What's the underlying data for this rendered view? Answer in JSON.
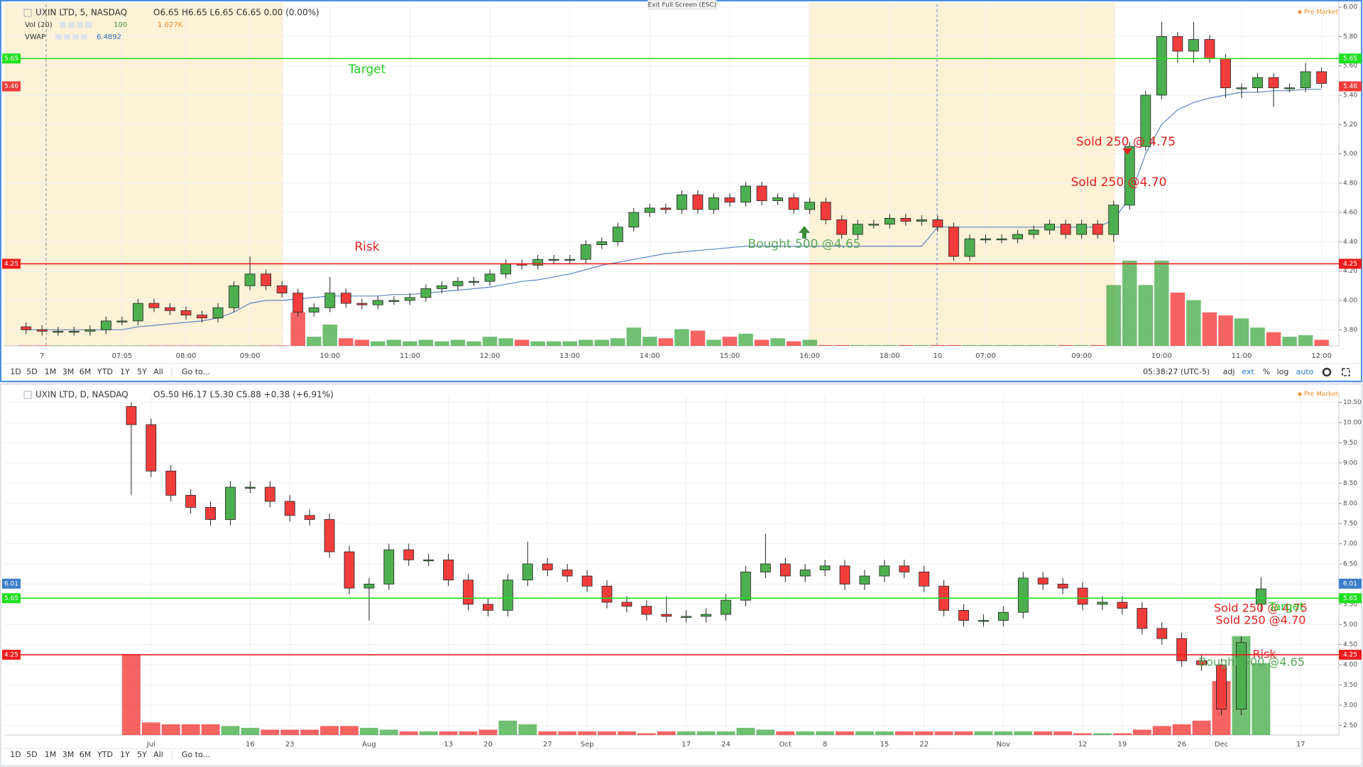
{
  "ui": {
    "exit_fullscreen": "Exit Full Screen (ESC)",
    "ranges": [
      "1D",
      "5D",
      "1M",
      "3M",
      "6M",
      "YTD",
      "1Y",
      "5Y",
      "All"
    ],
    "goto": "Go to...",
    "clock": "05:38:27 (UTC-5)",
    "options": [
      "adj",
      "ext",
      "%",
      "log",
      "auto"
    ]
  },
  "chart_data": [
    {
      "type": "candlestick",
      "title": "UXIN LTD, 5, NASDAQ",
      "ohlc_text": "O6.65 H6.65 L6.65 C6.65 0.00 (0.00%)",
      "session": "Pre Market",
      "indicators": [
        {
          "name": "Vol (20)",
          "values_text": [
            "100",
            "1.027K"
          ],
          "colors": [
            "#3a9a3a",
            "#f28c28"
          ]
        },
        {
          "name": "VWAP",
          "values_text": [
            "6.4892"
          ],
          "colors": [
            "#2f6fb8"
          ]
        }
      ],
      "up_color": "#4caf50",
      "down_color": "#f23c3c",
      "categories": [
        null,
        "7",
        null,
        null,
        null,
        null,
        "07:05",
        null,
        null,
        null,
        "08:00",
        null,
        null,
        null,
        "09:00",
        null,
        null,
        null,
        null,
        "10:00",
        null,
        null,
        null,
        null,
        "11:00",
        null,
        null,
        null,
        null,
        "12:00",
        null,
        null,
        null,
        null,
        "13:00",
        null,
        null,
        null,
        null,
        "14:00",
        null,
        null,
        null,
        null,
        "15:00",
        null,
        null,
        null,
        null,
        "16:00",
        null,
        null,
        null,
        null,
        "18:00",
        null,
        null,
        "10",
        null,
        null,
        "07:00",
        null,
        null,
        null,
        null,
        null,
        "09:00",
        null,
        null,
        null,
        null,
        "10:00",
        null,
        null,
        null,
        null,
        "11:00",
        null,
        null,
        null,
        null,
        "12:00"
      ],
      "open": [
        3.82,
        3.8,
        3.79,
        3.79,
        3.79,
        3.8,
        3.86,
        3.86,
        3.98,
        3.95,
        3.93,
        3.9,
        3.88,
        3.95,
        4.1,
        4.18,
        4.1,
        4.05,
        3.92,
        3.95,
        4.05,
        3.98,
        3.97,
        4.0,
        4.0,
        4.02,
        4.08,
        4.1,
        4.13,
        4.13,
        4.18,
        4.25,
        4.24,
        4.28,
        4.28,
        4.28,
        4.38,
        4.4,
        4.5,
        4.6,
        4.63,
        4.62,
        4.72,
        4.62,
        4.7,
        4.67,
        4.78,
        4.68,
        4.7,
        4.62,
        4.67,
        4.55,
        4.45,
        4.52,
        4.52,
        4.56,
        4.54,
        4.55,
        4.5,
        4.3,
        4.42,
        4.42,
        4.42,
        4.45,
        4.48,
        4.52,
        4.45,
        4.52,
        4.45,
        4.65,
        5.05,
        5.4,
        5.8,
        5.7,
        5.78,
        5.65,
        5.45,
        5.45,
        5.52,
        5.45,
        5.45,
        5.56
      ],
      "high": [
        3.85,
        3.83,
        3.82,
        3.82,
        3.83,
        3.89,
        3.89,
        4.01,
        4.01,
        3.98,
        3.96,
        3.93,
        3.98,
        4.13,
        4.3,
        4.21,
        4.13,
        4.08,
        3.98,
        4.16,
        4.08,
        4.01,
        4.03,
        4.03,
        4.05,
        4.11,
        4.13,
        4.16,
        4.16,
        4.21,
        4.28,
        4.28,
        4.31,
        4.31,
        4.31,
        4.41,
        4.43,
        4.53,
        4.63,
        4.66,
        4.66,
        4.75,
        4.75,
        4.73,
        4.73,
        4.81,
        4.81,
        4.73,
        4.73,
        4.7,
        4.7,
        4.58,
        4.55,
        4.55,
        4.59,
        4.59,
        4.58,
        4.58,
        4.53,
        4.45,
        4.45,
        4.45,
        4.48,
        4.51,
        4.55,
        4.55,
        4.55,
        4.55,
        4.68,
        5.08,
        5.43,
        5.9,
        5.83,
        5.9,
        5.81,
        5.68,
        5.48,
        5.55,
        5.55,
        5.48,
        5.62,
        5.59
      ],
      "low": [
        3.77,
        3.76,
        3.76,
        3.76,
        3.76,
        3.77,
        3.83,
        3.83,
        3.92,
        3.9,
        3.87,
        3.85,
        3.85,
        3.92,
        4.07,
        4.07,
        4.02,
        3.89,
        3.89,
        3.92,
        3.95,
        3.94,
        3.94,
        3.97,
        3.97,
        3.99,
        4.05,
        4.07,
        4.1,
        4.1,
        4.15,
        4.21,
        4.21,
        4.25,
        4.25,
        4.25,
        4.35,
        4.37,
        4.47,
        4.57,
        4.59,
        4.59,
        4.59,
        4.59,
        4.64,
        4.64,
        4.65,
        4.65,
        4.59,
        4.59,
        4.52,
        4.42,
        4.42,
        4.49,
        4.49,
        4.51,
        4.51,
        4.47,
        4.27,
        4.27,
        4.39,
        4.39,
        4.39,
        4.42,
        4.45,
        4.42,
        4.42,
        4.42,
        4.4,
        4.62,
        5.02,
        5.37,
        5.62,
        5.62,
        5.62,
        5.38,
        5.38,
        5.42,
        5.32,
        5.42,
        5.42,
        5.45
      ],
      "close": [
        3.8,
        3.79,
        3.79,
        3.79,
        3.8,
        3.86,
        3.86,
        3.98,
        3.95,
        3.93,
        3.9,
        3.88,
        3.95,
        4.1,
        4.18,
        4.1,
        4.05,
        3.92,
        3.95,
        4.05,
        3.98,
        3.97,
        4.0,
        4.0,
        4.02,
        4.08,
        4.1,
        4.13,
        4.13,
        4.18,
        4.25,
        4.24,
        4.28,
        4.28,
        4.28,
        4.38,
        4.4,
        4.5,
        4.6,
        4.63,
        4.62,
        4.72,
        4.62,
        4.7,
        4.67,
        4.78,
        4.68,
        4.7,
        4.62,
        4.67,
        4.55,
        4.45,
        4.52,
        4.52,
        4.56,
        4.54,
        4.55,
        4.5,
        4.3,
        4.42,
        4.42,
        4.42,
        4.45,
        4.48,
        4.52,
        4.45,
        4.52,
        4.45,
        4.65,
        5.05,
        5.4,
        5.8,
        5.7,
        5.78,
        5.65,
        5.45,
        5.45,
        5.52,
        5.45,
        5.45,
        5.56,
        5.48
      ],
      "volume": [
        3,
        3,
        3,
        3,
        3,
        3,
        3,
        3,
        3,
        3,
        3,
        3,
        3,
        3,
        3,
        3,
        3,
        220,
        60,
        140,
        50,
        40,
        30,
        40,
        30,
        40,
        30,
        40,
        30,
        60,
        50,
        40,
        30,
        30,
        30,
        40,
        40,
        50,
        120,
        60,
        50,
        110,
        100,
        40,
        60,
        80,
        40,
        50,
        30,
        40,
        5,
        5,
        5,
        5,
        5,
        5,
        5,
        5,
        5,
        5,
        5,
        5,
        5,
        5,
        5,
        5,
        5,
        5,
        400,
        560,
        400,
        560,
        350,
        300,
        220,
        200,
        180,
        120,
        90,
        60,
        70,
        40
      ],
      "vollim": [
        0,
        560
      ],
      "vwap": {
        "color": "#5b86c5",
        "values": [
          3.8,
          3.8,
          3.8,
          3.8,
          3.8,
          3.8,
          3.8,
          3.82,
          3.83,
          3.84,
          3.85,
          3.86,
          3.88,
          3.92,
          3.98,
          4.0,
          4.0,
          4.01,
          4.02,
          4.03,
          4.03,
          4.03,
          4.03,
          4.04,
          4.04,
          4.05,
          4.06,
          4.07,
          4.08,
          4.09,
          4.11,
          4.13,
          4.14,
          4.16,
          4.18,
          4.21,
          4.24,
          4.26,
          4.28,
          4.3,
          4.32,
          4.33,
          4.34,
          4.35,
          4.36,
          4.37,
          4.37,
          4.37,
          4.37,
          4.37,
          4.37,
          4.37,
          4.37,
          4.37,
          4.37,
          4.37,
          4.37,
          4.5,
          4.5,
          4.5,
          4.5,
          4.5,
          4.5,
          4.5,
          4.5,
          4.5,
          4.5,
          4.5,
          4.55,
          4.7,
          5.0,
          5.2,
          5.3,
          5.35,
          5.38,
          5.4,
          5.42,
          5.42,
          5.43,
          5.43,
          5.44,
          5.44
        ]
      },
      "ylim": [
        3.69,
        6.02
      ],
      "yticks": [
        {
          "value": 3.8,
          "label": "3.80"
        },
        {
          "value": 4.0,
          "label": "4.00"
        },
        {
          "value": 4.2,
          "label": "4.20"
        },
        {
          "value": 4.4,
          "label": "4.40"
        },
        {
          "value": 4.6,
          "label": "4.60"
        },
        {
          "value": 4.8,
          "label": "4.80"
        },
        {
          "value": 5.0,
          "label": "5.00"
        },
        {
          "value": 5.2,
          "label": "5.20"
        },
        {
          "value": 5.4,
          "label": "5.40"
        },
        {
          "value": 5.6,
          "label": "5.60"
        },
        {
          "value": 5.8,
          "label": "5.80"
        },
        {
          "value": 6.0,
          "label": "6.00"
        }
      ],
      "grid": true,
      "levels": [
        {
          "value": 5.65,
          "color": "#1ee01e"
        },
        {
          "value": 4.25,
          "color": "#ee1c1c"
        }
      ],
      "price_tags": [
        {
          "value": 5.46,
          "color": "#f23c3c"
        }
      ],
      "annotations": [
        {
          "text": "Target",
          "color": "#22d022"
        },
        {
          "text": "Risk",
          "color": "#e62020"
        },
        {
          "text": "Bought 500 @4.65",
          "color": "#5aa85a"
        },
        {
          "text": "Sold 250 @ 4.75",
          "color": "#e62020"
        },
        {
          "text": "Sold 250 @4.70",
          "color": "#e62020"
        }
      ]
    },
    {
      "type": "candlestick",
      "title": "UXIN LTD, D, NASDAQ",
      "ohlc_text": "O5.50 H6.17 L5.30 C5.88 +0.38 (+6.91%)",
      "session": "Pre Market",
      "up_color": "#4caf50",
      "down_color": "#f23c3c",
      "categories": [
        null,
        "Jul",
        null,
        null,
        null,
        null,
        "16",
        null,
        "23",
        null,
        null,
        null,
        "Aug",
        null,
        null,
        null,
        "13",
        null,
        "20",
        null,
        null,
        "27",
        null,
        "Sep",
        null,
        null,
        null,
        null,
        "17",
        null,
        "24",
        null,
        null,
        "Oct",
        null,
        "8",
        null,
        null,
        "15",
        null,
        "22",
        null,
        null,
        null,
        "Nov",
        null,
        null,
        null,
        "12",
        null,
        "19",
        null,
        null,
        "26",
        null,
        "Dec",
        null,
        null,
        null,
        "17"
      ],
      "open": [
        10.4,
        9.95,
        8.8,
        8.2,
        7.9,
        7.6,
        8.4,
        8.4,
        8.05,
        7.7,
        7.6,
        6.8,
        5.9,
        6.0,
        6.85,
        6.6,
        6.6,
        6.1,
        5.5,
        5.35,
        6.1,
        6.5,
        6.35,
        6.2,
        5.95,
        5.55,
        5.45,
        5.25,
        5.2,
        5.2,
        5.25,
        5.6,
        6.3,
        6.5,
        6.2,
        6.35,
        6.45,
        6.0,
        6.2,
        6.45,
        6.3,
        5.95,
        5.35,
        5.1,
        5.1,
        5.3,
        6.15,
        6.0,
        5.9,
        5.5,
        5.55,
        5.4,
        4.9,
        4.65,
        4.1,
        4.0,
        2.9,
        5.5,
        null,
        null
      ],
      "high": [
        10.5,
        10.1,
        8.95,
        8.35,
        8.05,
        8.55,
        8.55,
        8.55,
        8.2,
        7.85,
        7.75,
        6.95,
        6.15,
        7.0,
        7.0,
        6.75,
        6.75,
        6.25,
        5.65,
        6.25,
        7.05,
        6.65,
        6.5,
        6.35,
        6.1,
        5.7,
        5.6,
        5.7,
        5.35,
        5.4,
        5.75,
        6.45,
        7.25,
        6.65,
        6.5,
        6.6,
        6.6,
        6.35,
        6.6,
        6.6,
        6.45,
        6.1,
        5.5,
        5.25,
        5.45,
        6.3,
        6.3,
        6.15,
        6.05,
        5.7,
        5.7,
        5.55,
        5.05,
        4.8,
        4.25,
        4.15,
        4.7,
        6.17,
        null,
        null
      ],
      "low": [
        8.2,
        8.65,
        8.05,
        7.75,
        7.45,
        7.45,
        8.25,
        7.9,
        7.55,
        7.45,
        6.65,
        5.75,
        5.1,
        5.85,
        6.45,
        6.45,
        5.95,
        5.35,
        5.2,
        5.2,
        5.95,
        6.2,
        6.05,
        5.8,
        5.4,
        5.3,
        5.1,
        5.05,
        5.05,
        5.05,
        5.1,
        5.45,
        6.15,
        6.05,
        6.05,
        6.2,
        5.85,
        5.85,
        6.05,
        6.15,
        5.8,
        5.2,
        4.95,
        4.95,
        4.95,
        5.15,
        5.85,
        5.75,
        5.35,
        5.35,
        5.25,
        4.75,
        4.5,
        3.95,
        3.85,
        2.75,
        2.75,
        5.3,
        null,
        null
      ],
      "close": [
        9.95,
        8.8,
        8.2,
        7.9,
        7.6,
        8.4,
        8.4,
        8.05,
        7.7,
        7.6,
        6.8,
        5.9,
        6.0,
        6.85,
        6.6,
        6.6,
        6.1,
        5.5,
        5.35,
        6.1,
        6.5,
        6.35,
        6.2,
        5.95,
        5.55,
        5.45,
        5.25,
        5.2,
        5.2,
        5.25,
        5.6,
        6.3,
        6.5,
        6.2,
        6.35,
        6.45,
        6.0,
        6.2,
        6.45,
        6.3,
        5.95,
        5.35,
        5.1,
        5.1,
        5.3,
        6.15,
        6.0,
        5.9,
        5.5,
        5.55,
        5.4,
        4.9,
        4.65,
        4.1,
        4.0,
        2.9,
        4.55,
        5.88,
        null,
        null
      ],
      "volume": [
        4.5,
        0.7,
        0.6,
        0.6,
        0.6,
        0.5,
        0.4,
        0.3,
        0.3,
        0.3,
        0.5,
        0.5,
        0.4,
        0.3,
        0.2,
        0.2,
        0.2,
        0.2,
        0.3,
        0.8,
        0.6,
        0.2,
        0.2,
        0.2,
        0.2,
        0.2,
        0.1,
        0.2,
        0.2,
        0.2,
        0.2,
        0.4,
        0.3,
        0.2,
        0.2,
        0.2,
        0.2,
        0.2,
        0.2,
        0.2,
        0.2,
        0.2,
        0.2,
        0.2,
        0.2,
        0.2,
        0.2,
        0.2,
        0.1,
        0.1,
        0.1,
        0.3,
        0.5,
        0.6,
        0.8,
        3.0,
        5.5,
        4.0,
        null,
        null
      ],
      "vollim": [
        0,
        6
      ],
      "ylim": [
        2.26,
        10.67
      ],
      "yticks": [
        {
          "value": 2.5,
          "label": "2.50"
        },
        {
          "value": 3.0,
          "label": "3.00"
        },
        {
          "value": 3.5,
          "label": "3.50"
        },
        {
          "value": 4.0,
          "label": "4.00"
        },
        {
          "value": 4.5,
          "label": "4.50"
        },
        {
          "value": 5.0,
          "label": "5.00"
        },
        {
          "value": 5.5,
          "label": "5.50"
        },
        {
          "value": 6.0,
          "label": "6.00"
        },
        {
          "value": 6.5,
          "label": "6.50"
        },
        {
          "value": 7.0,
          "label": "7.00"
        },
        {
          "value": 7.5,
          "label": "7.50"
        },
        {
          "value": 8.0,
          "label": "8.00"
        },
        {
          "value": 8.5,
          "label": "8.50"
        },
        {
          "value": 9.0,
          "label": "9.00"
        },
        {
          "value": 9.5,
          "label": "9.50"
        },
        {
          "value": 10.0,
          "label": "10.00"
        },
        {
          "value": 10.5,
          "label": "10.50"
        }
      ],
      "grid": true,
      "levels": [
        {
          "value": 5.65,
          "color": "#1ee01e"
        },
        {
          "value": 4.25,
          "color": "#ee1c1c"
        }
      ],
      "price_tags": [
        {
          "value": 6.01,
          "color": "#3d7ec8"
        }
      ],
      "annotations": [
        {
          "text": "Sold 250 @ 4.75",
          "color": "#e62020"
        },
        {
          "text": "Sold 250 @4.70",
          "color": "#e62020"
        },
        {
          "text": "Target",
          "color": "#22d022"
        },
        {
          "text": "Risk",
          "color": "#e62020"
        },
        {
          "text": "Bought 500 @4.65",
          "color": "#5aa85a"
        }
      ]
    }
  ]
}
